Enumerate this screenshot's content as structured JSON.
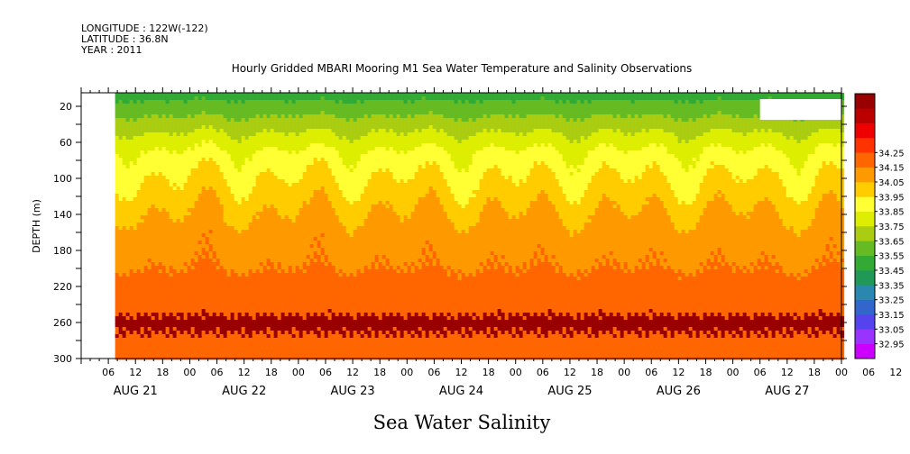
{
  "header": {
    "longitude": "LONGITUDE : 122W(-122)",
    "latitude": "LATITUDE : 36.8N",
    "year": "YEAR : 2011"
  },
  "chart_data": {
    "type": "heatmap",
    "title": "Hourly Gridded MBARI Mooring M1 Sea Water Temperature and Salinity Observations",
    "xlabel": "",
    "ylabel": "DEPTH (m)",
    "footer_label": "Sea Water Salinity",
    "ylim": [
      300,
      5
    ],
    "y_reversed": true,
    "y_ticks": [
      20,
      40,
      60,
      80,
      100,
      120,
      140,
      160,
      180,
      200,
      220,
      240,
      260,
      280,
      300
    ],
    "y_tick_labels": [
      "20",
      "60",
      "100",
      "140",
      "180",
      "220",
      "260",
      "300"
    ],
    "x_ticks": [
      "06",
      "12",
      "18",
      "00",
      "06",
      "12",
      "18",
      "00",
      "06",
      "12",
      "18",
      "00",
      "06",
      "12",
      "18",
      "00",
      "06",
      "12",
      "18",
      "00",
      "06",
      "12",
      "18",
      "00",
      "06",
      "12",
      "18",
      "00",
      "06",
      "12",
      "18",
      "00"
    ],
    "x_day_labels": [
      "AUG 21",
      "AUG 22",
      "AUG 23",
      "AUG 24",
      "AUG 25",
      "AUG 26",
      "AUG 27"
    ],
    "x_range_hours": [
      0,
      168
    ],
    "data_start_hour": 7.5,
    "missing_block": {
      "x_hours": [
        150,
        206
      ],
      "depth": [
        12,
        35
      ]
    },
    "colorbar": {
      "levels": [
        32.95,
        33.05,
        33.15,
        33.25,
        33.35,
        33.45,
        33.55,
        33.65,
        33.75,
        33.85,
        33.95,
        34.05,
        34.15,
        34.25
      ],
      "labels": [
        "32.95",
        "33.05",
        "33.15",
        "33.25",
        "33.35",
        "33.45",
        "33.55",
        "33.65",
        "33.75",
        "33.85",
        "33.95",
        "34.05",
        "34.15",
        "34.25"
      ],
      "colors": [
        "#cc00ff",
        "#9933ff",
        "#5544ee",
        "#3366cc",
        "#2a88b0",
        "#1f9955",
        "#33aa33",
        "#66bb22",
        "#aacc11",
        "#ddee00",
        "#ffff33",
        "#ffcc00",
        "#ff9900",
        "#ff6600",
        "#ff3300",
        "#ee0000",
        "#bb0000",
        "#990000"
      ]
    },
    "profile": [
      {
        "depth": 5,
        "value": 33.5
      },
      {
        "depth": 22,
        "value": 33.6
      },
      {
        "depth": 40,
        "value": 33.7
      },
      {
        "depth": 55,
        "value": 33.78
      },
      {
        "depth": 75,
        "value": 33.88
      },
      {
        "depth": 100,
        "value": 33.95
      },
      {
        "depth": 130,
        "value": 34.03
      },
      {
        "depth": 160,
        "value": 34.1
      },
      {
        "depth": 200,
        "value": 34.15
      },
      {
        "depth": 230,
        "value": 34.2
      },
      {
        "depth": 260,
        "value": 34.27
      },
      {
        "depth": 290,
        "value": 34.22
      },
      {
        "depth": 300,
        "value": 34.22
      }
    ]
  }
}
